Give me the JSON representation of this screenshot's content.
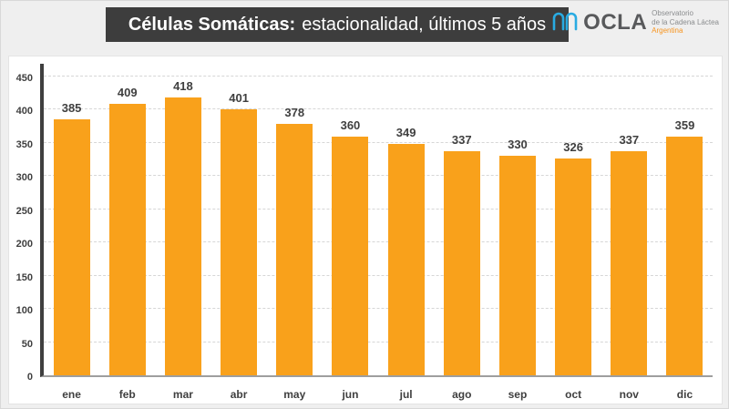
{
  "header": {
    "title_bold": "Células Somáticas:",
    "title_rest": "estacionalidad, últimos 5 años"
  },
  "logo": {
    "acronym": "OCLA",
    "line1": "Observatorio",
    "line2": "de la Cadena Láctea",
    "line3": "Argentina"
  },
  "colors": {
    "bar": "#F9A11B",
    "header_bg": "#3D3D3D",
    "logo_blue": "#29ABE2",
    "logo_orange": "#F7941E",
    "text_dark": "#3F3F3F"
  },
  "chart_data": {
    "type": "bar",
    "title": "Células Somáticas: estacionalidad, últimos 5 años",
    "categories": [
      "ene",
      "feb",
      "mar",
      "abr",
      "may",
      "jun",
      "jul",
      "ago",
      "sep",
      "oct",
      "nov",
      "dic"
    ],
    "values": [
      385,
      409,
      418,
      401,
      378,
      360,
      349,
      337,
      330,
      326,
      337,
      359
    ],
    "xlabel": "",
    "ylabel": "",
    "ylim": [
      0,
      450
    ],
    "ytick_step": 50,
    "grid": "horizontal-dashed",
    "legend": "none",
    "data_labels": true
  }
}
